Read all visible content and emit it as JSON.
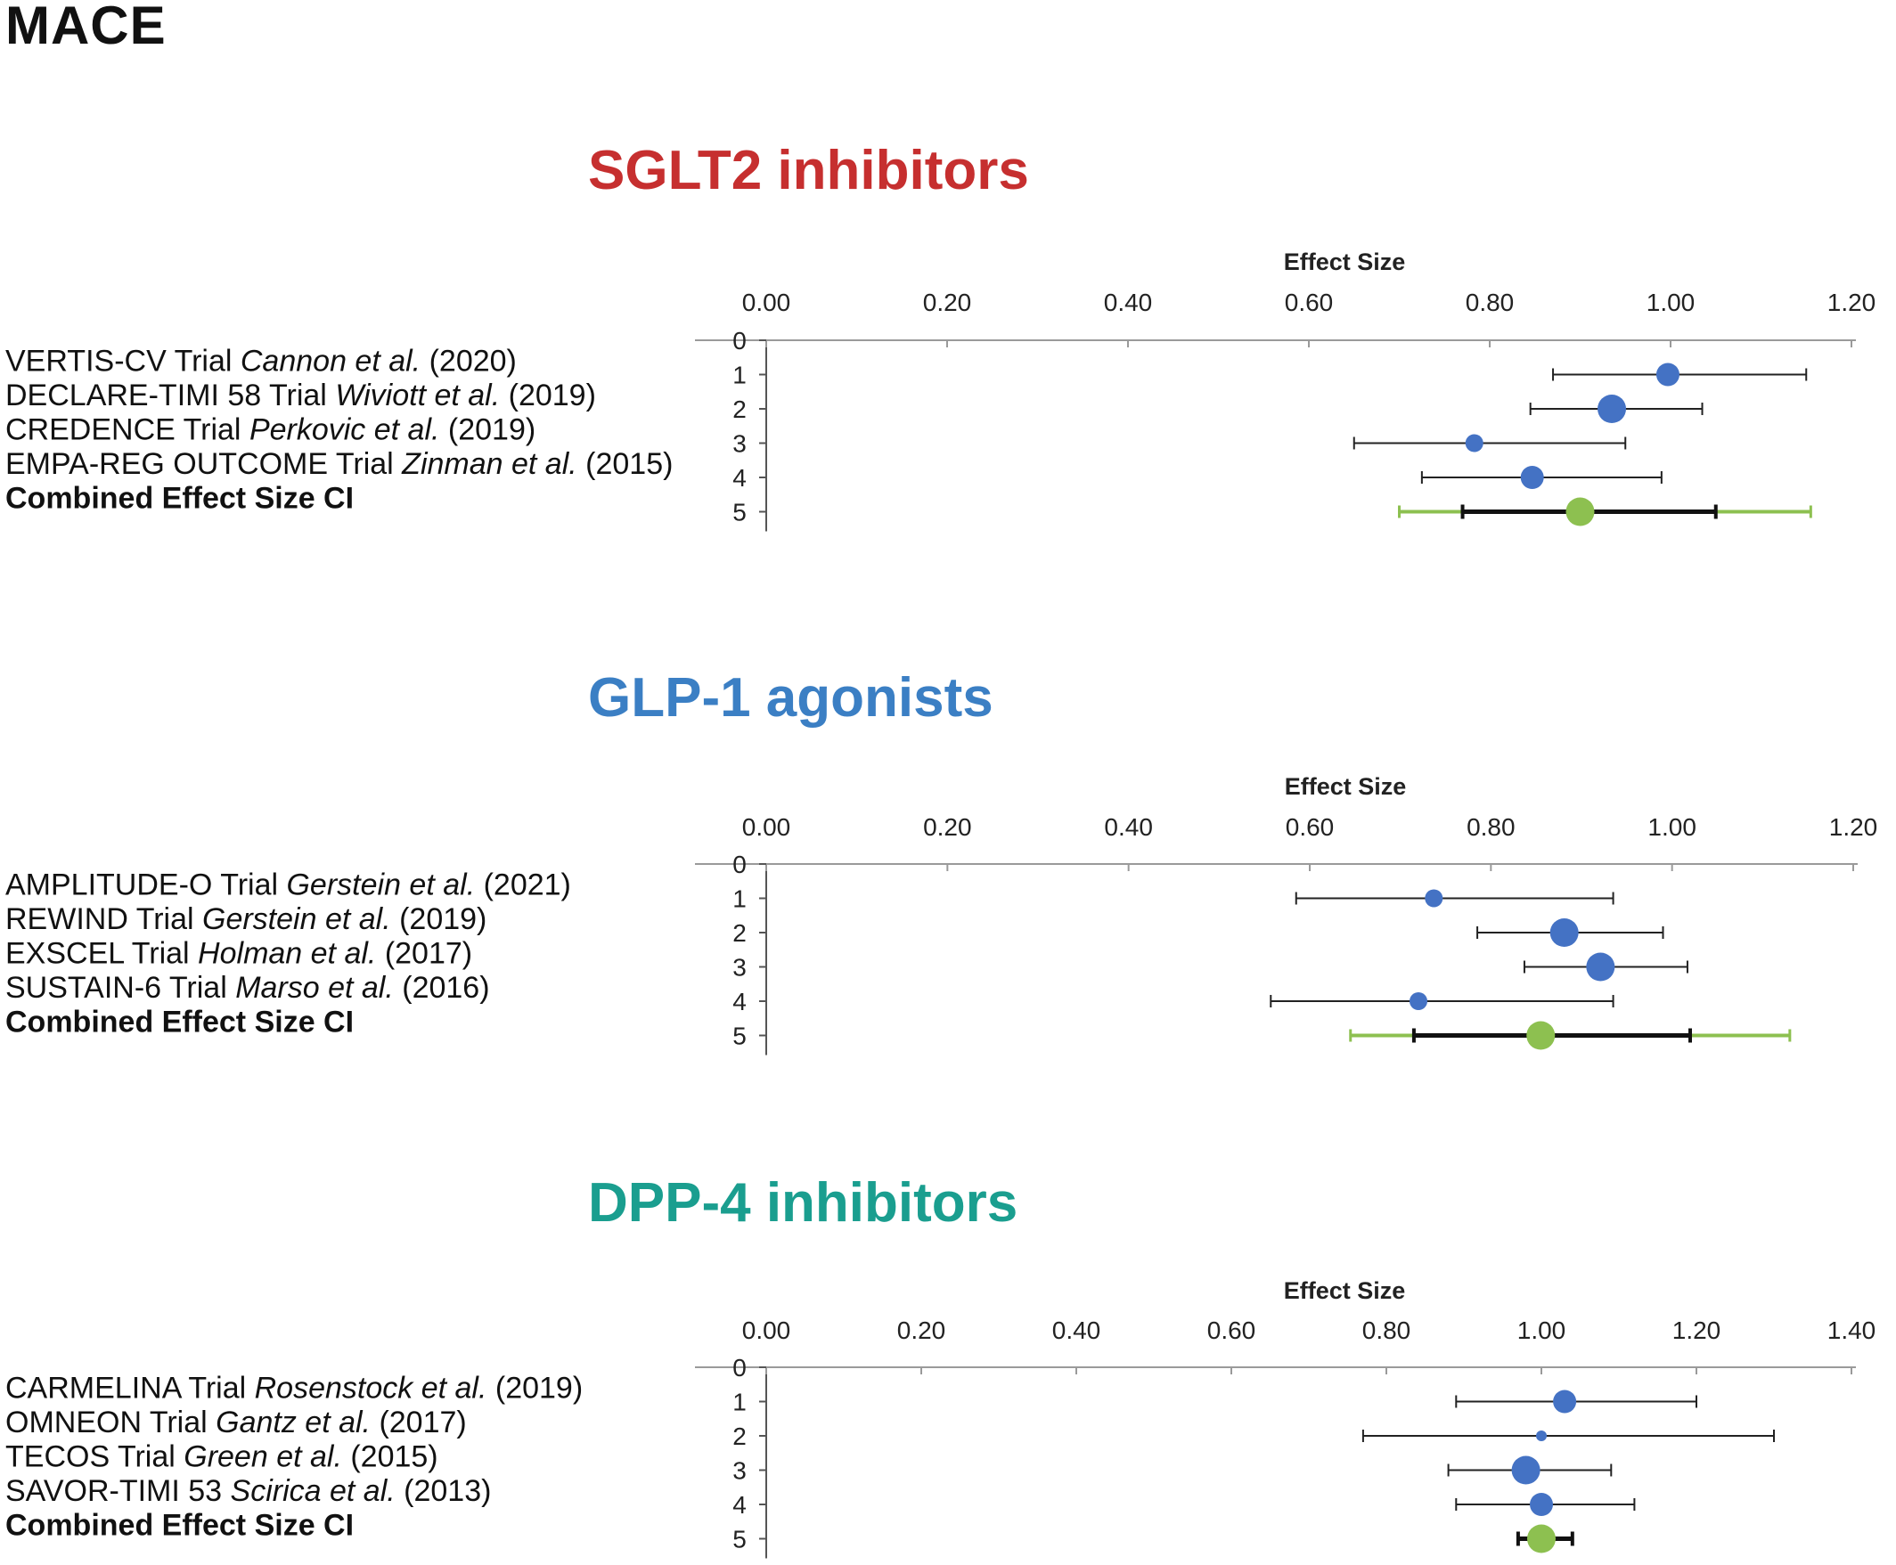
{
  "figure": {
    "title": "MACE"
  },
  "colors": {
    "study_point": "#4472c4",
    "combined_point": "#8dc050",
    "combined_ci_outer": "#8dc050",
    "combined_ci_inner": "#111111",
    "error_bar": "#222222",
    "axis": "#9a9a9a",
    "sglt2_title": "#c62f2f",
    "glp1_title": "#3b7fc4",
    "dpp4_title": "#1a9e8f"
  },
  "chart_data": [
    {
      "type": "scatter",
      "subtype": "forest-plot",
      "title": "SGLT2 inhibitors",
      "title_color": "#c62f2f",
      "xlabel": "Effect Size",
      "ylabel": "",
      "xlim": [
        0,
        1.2
      ],
      "x_ticks": [
        "0.00",
        "0.20",
        "0.40",
        "0.60",
        "0.80",
        "1.00",
        "1.20"
      ],
      "y_ticks": [
        "0",
        "1",
        "2",
        "3",
        "4",
        "5"
      ],
      "x_axis_position": "top",
      "grid": false,
      "rows": [
        {
          "pos": 1,
          "label": {
            "pre": "VERTIS-CV Trial ",
            "ital": "Cannon et al.",
            "post": " (2020)"
          },
          "bold": false,
          "est": 0.997,
          "lo": 0.87,
          "hi": 1.15,
          "weight": "medium"
        },
        {
          "pos": 2,
          "label": {
            "pre": "DECLARE-TIMI 58 Trial ",
            "ital": "Wiviott et al.",
            "post": " (2019)"
          },
          "bold": false,
          "est": 0.935,
          "lo": 0.845,
          "hi": 1.035,
          "weight": "large"
        },
        {
          "pos": 3,
          "label": {
            "pre": "CREDENCE Trial ",
            "ital": "Perkovic et al.",
            "post": " (2019)"
          },
          "bold": false,
          "est": 0.783,
          "lo": 0.65,
          "hi": 0.95,
          "weight": "small"
        },
        {
          "pos": 4,
          "label": {
            "pre": "EMPA-REG OUTCOME Trial ",
            "ital": "Zinman et al.",
            "post": " (2015)"
          },
          "bold": false,
          "est": 0.847,
          "lo": 0.725,
          "hi": 0.99,
          "weight": "medium"
        },
        {
          "pos": 5,
          "label": {
            "pre": "Combined Effect Size CI",
            "ital": "",
            "post": ""
          },
          "bold": true,
          "combined": true,
          "est": 0.9,
          "lo": 0.77,
          "hi": 1.05,
          "lo_outer": 0.7,
          "hi_outer": 1.155
        }
      ]
    },
    {
      "type": "scatter",
      "subtype": "forest-plot",
      "title": "GLP-1 agonists",
      "title_color": "#3b7fc4",
      "xlabel": "Effect Size",
      "ylabel": "",
      "xlim": [
        0,
        1.2
      ],
      "x_ticks": [
        "0.00",
        "0.20",
        "0.40",
        "0.60",
        "0.80",
        "1.00",
        "1.20"
      ],
      "y_ticks": [
        "0",
        "1",
        "2",
        "3",
        "4",
        "5"
      ],
      "x_axis_position": "top",
      "grid": false,
      "rows": [
        {
          "pos": 1,
          "label": {
            "pre": "AMPLITUDE-O Trial ",
            "ital": "Gerstein et al.",
            "post": " (2021)"
          },
          "bold": false,
          "est": 0.737,
          "lo": 0.585,
          "hi": 0.935,
          "weight": "small"
        },
        {
          "pos": 2,
          "label": {
            "pre": "REWIND Trial ",
            "ital": "Gerstein et al.",
            "post": " (2019)"
          },
          "bold": false,
          "est": 0.881,
          "lo": 0.785,
          "hi": 0.99,
          "weight": "large"
        },
        {
          "pos": 3,
          "label": {
            "pre": "EXSCEL Trial ",
            "ital": "Holman et al.",
            "post": " (2017)"
          },
          "bold": false,
          "est": 0.921,
          "lo": 0.837,
          "hi": 1.017,
          "weight": "large"
        },
        {
          "pos": 4,
          "label": {
            "pre": "SUSTAIN-6 Trial ",
            "ital": "Marso et al.",
            "post": " (2016)"
          },
          "bold": false,
          "est": 0.72,
          "lo": 0.557,
          "hi": 0.935,
          "weight": "small"
        },
        {
          "pos": 5,
          "label": {
            "pre": "Combined Effect Size CI",
            "ital": "",
            "post": ""
          },
          "bold": true,
          "combined": true,
          "est": 0.855,
          "lo": 0.715,
          "hi": 1.02,
          "lo_outer": 0.645,
          "hi_outer": 1.13
        }
      ]
    },
    {
      "type": "scatter",
      "subtype": "forest-plot",
      "title": "DPP-4 inhibitors",
      "title_color": "#1a9e8f",
      "xlabel": "Effect Size",
      "ylabel": "",
      "xlim": [
        0,
        1.4
      ],
      "x_ticks": [
        "0.00",
        "0.20",
        "0.40",
        "0.60",
        "0.80",
        "1.00",
        "1.20",
        "1.40"
      ],
      "y_ticks": [
        "0",
        "1",
        "2",
        "3",
        "4",
        "5"
      ],
      "x_axis_position": "top",
      "grid": false,
      "rows": [
        {
          "pos": 1,
          "label": {
            "pre": "CARMELINA Trial ",
            "ital": "Rosenstock et al.",
            "post": " (2019)"
          },
          "bold": false,
          "est": 1.03,
          "lo": 0.89,
          "hi": 1.2,
          "weight": "medium"
        },
        {
          "pos": 2,
          "label": {
            "pre": "OMNEON Trial ",
            "ital": "Gantz et al.",
            "post": " (2017)"
          },
          "bold": false,
          "est": 1.0,
          "lo": 0.77,
          "hi": 1.3,
          "weight": "tiny"
        },
        {
          "pos": 3,
          "label": {
            "pre": "TECOS Trial ",
            "ital": "Green et al.",
            "post": " (2015)"
          },
          "bold": false,
          "est": 0.98,
          "lo": 0.88,
          "hi": 1.09,
          "weight": "large"
        },
        {
          "pos": 4,
          "label": {
            "pre": "SAVOR-TIMI 53 ",
            "ital": "Scirica et al.",
            "post": " (2013)"
          },
          "bold": false,
          "est": 1.0,
          "lo": 0.89,
          "hi": 1.12,
          "weight": "medium"
        },
        {
          "pos": 5,
          "label": {
            "pre": "Combined Effect Size CI",
            "ital": "",
            "post": ""
          },
          "bold": true,
          "combined": true,
          "est": 1.0,
          "lo": 0.97,
          "hi": 1.04
        }
      ]
    }
  ]
}
